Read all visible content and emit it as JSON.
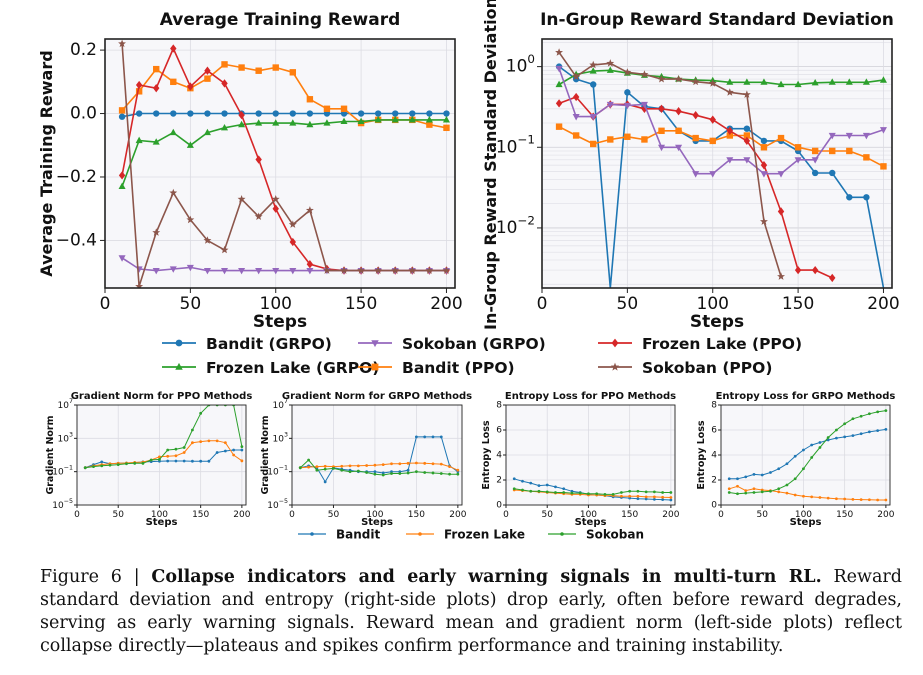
{
  "legend_top": [
    {
      "name": "Bandit (GRPO)",
      "color": "#1f77b4",
      "marker": "circle"
    },
    {
      "name": "Frozen Lake (GRPO)",
      "color": "#2ca02c",
      "marker": "triangle-up"
    },
    {
      "name": "Sokoban (GRPO)",
      "color": "#9467bd",
      "marker": "triangle-down"
    },
    {
      "name": "Bandit (PPO)",
      "color": "#ff7f0e",
      "marker": "square"
    },
    {
      "name": "Frozen Lake (PPO)",
      "color": "#d62728",
      "marker": "diamond"
    },
    {
      "name": "Sokoban (PPO)",
      "color": "#8c564b",
      "marker": "star"
    }
  ],
  "legend_bottom": [
    {
      "name": "Bandit",
      "color": "#1f77b4"
    },
    {
      "name": "Frozen Lake",
      "color": "#ff7f0e"
    },
    {
      "name": "Sokoban",
      "color": "#2ca02c"
    }
  ],
  "caption": {
    "label": "Figure 6 | ",
    "bold": "Collapse indicators and early warning signals in multi-turn RL.",
    "text": " Reward standard deviation and entropy (right-side plots) drop early, often before reward degrades, serving as early warning signals. Reward mean and gradient norm (left-side plots) reflect collapse directly—plateaus and spikes confirm performance and training instability."
  },
  "chart_data": [
    {
      "type": "line",
      "title": "Average Training Reward",
      "xlabel": "Steps",
      "ylabel": "Average Training Reward",
      "xlim": [
        0,
        205
      ],
      "ylim": [
        -0.55,
        0.235
      ],
      "xticks": [
        0,
        50,
        100,
        150,
        200
      ],
      "yticks": [
        -0.4,
        -0.2,
        0.0,
        0.2
      ],
      "yticklabels": [
        "−0.4",
        "−0.2",
        "0.0",
        "0.2"
      ],
      "grid": true,
      "x": [
        10,
        20,
        30,
        40,
        50,
        60,
        70,
        80,
        90,
        100,
        110,
        120,
        130,
        140,
        150,
        160,
        170,
        180,
        190,
        200
      ],
      "series": [
        {
          "name": "Bandit (GRPO)",
          "values": [
            -0.01,
            0.0,
            0.0,
            0.0,
            0.0,
            0.0,
            0.0,
            0.0,
            0.0,
            0.0,
            0.0,
            0.0,
            0.0,
            0.0,
            0.0,
            0.0,
            0.0,
            0.0,
            0.0,
            0.0
          ]
        },
        {
          "name": "Bandit (PPO)",
          "values": [
            0.01,
            0.07,
            0.14,
            0.1,
            0.08,
            0.11,
            0.155,
            0.145,
            0.135,
            0.145,
            0.13,
            0.045,
            0.015,
            0.015,
            -0.03,
            -0.02,
            -0.02,
            -0.02,
            -0.035,
            -0.045
          ]
        },
        {
          "name": "Frozen Lake (GRPO)",
          "values": [
            -0.23,
            -0.085,
            -0.09,
            -0.06,
            -0.1,
            -0.06,
            -0.045,
            -0.035,
            -0.03,
            -0.03,
            -0.03,
            -0.035,
            -0.03,
            -0.025,
            -0.025,
            -0.02,
            -0.02,
            -0.02,
            -0.02,
            -0.02
          ]
        },
        {
          "name": "Frozen Lake (PPO)",
          "values": [
            -0.195,
            0.09,
            0.08,
            0.205,
            0.085,
            0.135,
            0.095,
            -0.005,
            -0.145,
            -0.3,
            -0.405,
            -0.475,
            -0.49,
            -0.495,
            -0.495,
            -0.495,
            -0.495,
            -0.495,
            -0.495,
            -0.495
          ]
        },
        {
          "name": "Sokoban (GRPO)",
          "values": [
            -0.455,
            -0.49,
            -0.495,
            -0.49,
            -0.485,
            -0.495,
            -0.495,
            -0.495,
            -0.495,
            -0.495,
            -0.495,
            -0.495,
            -0.495,
            -0.495,
            -0.495,
            -0.495,
            -0.495,
            -0.495,
            -0.495,
            -0.495
          ]
        },
        {
          "name": "Sokoban (PPO)",
          "values": [
            0.22,
            -0.545,
            -0.375,
            -0.25,
            -0.335,
            -0.4,
            -0.43,
            -0.27,
            -0.325,
            -0.27,
            -0.35,
            -0.305,
            -0.495,
            -0.495,
            -0.495,
            -0.495,
            -0.495,
            -0.495,
            -0.495,
            -0.495
          ]
        }
      ]
    },
    {
      "type": "line",
      "title": "In-Group Reward Standard Deviation",
      "xlabel": "Steps",
      "ylabel": "In-Group Reward Standard Deviation",
      "xlim": [
        0,
        205
      ],
      "ylim": [
        0.0018,
        2.2
      ],
      "yscale": "log",
      "xticks": [
        0,
        50,
        100,
        150,
        200
      ],
      "yticks": [
        0.01,
        0.1,
        1
      ],
      "yticklabels": [
        "10^-2",
        "10^-1",
        "10^0"
      ],
      "grid": true,
      "x": [
        10,
        20,
        30,
        40,
        50,
        60,
        70,
        80,
        90,
        100,
        110,
        120,
        130,
        140,
        150,
        160,
        170,
        180,
        190,
        200
      ],
      "series": [
        {
          "name": "Bandit (GRPO)",
          "values": [
            1.0,
            0.7,
            0.6,
            0.0001,
            0.48,
            0.32,
            0.3,
            0.16,
            0.12,
            0.12,
            0.17,
            0.17,
            0.12,
            0.12,
            0.09,
            0.048,
            0.048,
            0.024,
            0.024,
            0.0001
          ]
        },
        {
          "name": "Bandit (PPO)",
          "values": [
            0.18,
            0.14,
            0.11,
            0.125,
            0.135,
            0.125,
            0.16,
            0.16,
            0.13,
            0.12,
            0.14,
            0.14,
            0.1,
            0.13,
            0.1,
            0.09,
            0.09,
            0.09,
            0.075,
            0.058
          ]
        },
        {
          "name": "Frozen Lake (GRPO)",
          "values": [
            0.6,
            0.8,
            0.88,
            0.9,
            0.83,
            0.78,
            0.75,
            0.7,
            0.68,
            0.67,
            0.64,
            0.64,
            0.64,
            0.6,
            0.6,
            0.63,
            0.64,
            0.64,
            0.64,
            0.68
          ]
        },
        {
          "name": "Frozen Lake (PPO)",
          "values": [
            0.35,
            0.42,
            0.24,
            0.34,
            0.34,
            0.3,
            0.3,
            0.28,
            0.25,
            0.22,
            0.16,
            0.12,
            0.06,
            0.016,
            0.003,
            0.003,
            0.0024,
            null,
            null,
            null
          ]
        },
        {
          "name": "Sokoban (GRPO)",
          "values": [
            0.95,
            0.24,
            0.24,
            0.34,
            0.33,
            0.34,
            0.1,
            0.1,
            0.047,
            0.047,
            0.07,
            0.07,
            0.047,
            0.047,
            0.07,
            0.07,
            0.14,
            0.14,
            0.14,
            0.165
          ]
        },
        {
          "name": "Sokoban (PPO)",
          "values": [
            1.5,
            0.75,
            1.05,
            1.1,
            0.85,
            0.8,
            0.7,
            0.7,
            0.65,
            0.62,
            0.48,
            0.45,
            0.012,
            0.0025,
            null,
            null,
            null,
            null,
            null,
            null
          ]
        }
      ]
    },
    {
      "type": "line",
      "title": "Gradient Norm for PPO Methods",
      "xlabel": "Steps",
      "ylabel": "Gradient Norm",
      "xlim": [
        0,
        205
      ],
      "ylim": [
        1e-05,
        10000000
      ],
      "yscale": "log",
      "xticks": [
        0,
        50,
        100,
        150,
        200
      ],
      "yticks": [
        1e-05,
        0.1,
        1000,
        10000000
      ],
      "yticklabels": [
        "10^-5",
        "10^-1",
        "10^3",
        "10^7"
      ],
      "grid": true,
      "x": [
        10,
        20,
        30,
        40,
        50,
        60,
        70,
        80,
        90,
        100,
        110,
        120,
        130,
        140,
        150,
        160,
        170,
        180,
        190,
        200
      ],
      "series": [
        {
          "name": "Bandit",
          "values": [
            0.3,
            0.7,
            1.5,
            0.9,
            1.0,
            1.1,
            1.2,
            1.5,
            1.6,
            1.8,
            1.9,
            1.9,
            1.9,
            1.8,
            1.8,
            1.8,
            20,
            30,
            40,
            40
          ]
        },
        {
          "name": "Frozen Lake",
          "values": [
            0.3,
            0.5,
            0.7,
            0.9,
            1.0,
            1.1,
            1.3,
            1.4,
            2.5,
            6,
            7,
            8,
            20,
            300,
            400,
            500,
            500,
            300,
            10,
            2
          ]
        },
        {
          "name": "Sokoban",
          "values": [
            0.3,
            0.4,
            0.5,
            0.6,
            0.7,
            0.9,
            1.0,
            1.0,
            2.5,
            3,
            40,
            50,
            80,
            10000,
            1000000,
            10000000,
            10000000,
            10000000,
            10000000,
            100
          ]
        }
      ]
    },
    {
      "type": "line",
      "title": "Gradient Norm for GRPO Methods",
      "xlabel": "Steps",
      "ylabel": "Gradient Norm",
      "xlim": [
        0,
        205
      ],
      "ylim": [
        1e-05,
        10000000
      ],
      "yscale": "log",
      "xticks": [
        0,
        50,
        100,
        150,
        200
      ],
      "yticks": [
        1e-05,
        0.1,
        1000,
        10000000
      ],
      "yticklabels": [
        "10^-5",
        "10^-1",
        "10^3",
        "10^7"
      ],
      "grid": true,
      "x": [
        10,
        20,
        30,
        40,
        50,
        60,
        70,
        80,
        90,
        100,
        110,
        120,
        130,
        140,
        150,
        160,
        170,
        180,
        190,
        200
      ],
      "series": [
        {
          "name": "Bandit",
          "values": [
            0.3,
            0.5,
            0.3,
            0.006,
            0.3,
            0.2,
            0.15,
            0.1,
            0.1,
            0.1,
            0.07,
            0.1,
            0.1,
            0.15,
            1500,
            1500,
            1500,
            1500,
            0.5,
            0.1
          ]
        },
        {
          "name": "Frozen Lake",
          "values": [
            0.3,
            0.35,
            0.4,
            0.45,
            0.4,
            0.45,
            0.5,
            0.5,
            0.55,
            0.6,
            0.7,
            0.9,
            0.9,
            1.0,
            1.1,
            1.0,
            0.9,
            0.8,
            0.4,
            0.15
          ]
        },
        {
          "name": "Sokoban",
          "values": [
            0.3,
            2.5,
            0.15,
            0.2,
            0.25,
            0.15,
            0.1,
            0.12,
            0.08,
            0.05,
            0.04,
            0.06,
            0.06,
            0.07,
            0.1,
            0.08,
            0.07,
            0.06,
            0.05,
            0.05
          ]
        }
      ]
    },
    {
      "type": "line",
      "title": "Entropy Loss for PPO Methods",
      "xlabel": "Steps",
      "ylabel": "Entropy Loss",
      "xlim": [
        0,
        205
      ],
      "ylim": [
        0,
        8
      ],
      "xticks": [
        0,
        50,
        100,
        150,
        200
      ],
      "yticks": [
        0,
        2,
        4,
        6,
        8
      ],
      "yticklabels": [
        "0",
        "2",
        "4",
        "6",
        "8"
      ],
      "grid": true,
      "x": [
        10,
        20,
        30,
        40,
        50,
        60,
        70,
        80,
        90,
        100,
        110,
        120,
        130,
        140,
        150,
        160,
        170,
        180,
        190,
        200
      ],
      "series": [
        {
          "name": "Bandit",
          "values": [
            2.1,
            1.9,
            1.75,
            1.55,
            1.6,
            1.45,
            1.3,
            1.1,
            1.0,
            0.85,
            0.8,
            0.75,
            0.65,
            0.6,
            0.55,
            0.5,
            0.48,
            0.45,
            0.43,
            0.4
          ]
        },
        {
          "name": "Frozen Lake",
          "values": [
            1.2,
            1.15,
            1.1,
            1.05,
            1.0,
            0.95,
            0.9,
            0.85,
            0.85,
            0.8,
            0.8,
            0.75,
            0.75,
            0.7,
            0.7,
            0.7,
            0.65,
            0.65,
            0.62,
            0.6
          ]
        },
        {
          "name": "Sokoban",
          "values": [
            1.3,
            1.2,
            1.1,
            1.1,
            1.05,
            1.0,
            1.0,
            0.95,
            0.95,
            0.9,
            0.9,
            0.85,
            0.85,
            1.0,
            1.1,
            1.1,
            1.05,
            1.05,
            1.0,
            1.0
          ]
        }
      ]
    },
    {
      "type": "line",
      "title": "Entropy Loss for GRPO Methods",
      "xlabel": "Steps",
      "ylabel": "Entropy Loss",
      "xlim": [
        0,
        205
      ],
      "ylim": [
        0,
        8
      ],
      "xticks": [
        0,
        50,
        100,
        150,
        200
      ],
      "yticks": [
        0,
        2,
        4,
        6,
        8
      ],
      "yticklabels": [
        "0",
        "2",
        "4",
        "6",
        "8"
      ],
      "grid": true,
      "x": [
        10,
        20,
        30,
        40,
        50,
        60,
        70,
        80,
        90,
        100,
        110,
        120,
        130,
        140,
        150,
        160,
        170,
        180,
        190,
        200
      ],
      "series": [
        {
          "name": "Bandit",
          "values": [
            2.1,
            2.1,
            2.25,
            2.45,
            2.4,
            2.6,
            2.9,
            3.3,
            3.9,
            4.4,
            4.8,
            5.0,
            5.2,
            5.35,
            5.45,
            5.55,
            5.7,
            5.85,
            5.95,
            6.05
          ]
        },
        {
          "name": "Frozen Lake",
          "values": [
            1.3,
            1.5,
            1.15,
            1.3,
            1.2,
            1.15,
            1.05,
            0.95,
            0.8,
            0.7,
            0.65,
            0.6,
            0.55,
            0.5,
            0.48,
            0.45,
            0.43,
            0.42,
            0.4,
            0.4
          ]
        },
        {
          "name": "Sokoban",
          "values": [
            1.0,
            0.9,
            0.95,
            1.0,
            1.05,
            1.1,
            1.3,
            1.6,
            2.1,
            2.9,
            3.8,
            4.6,
            5.4,
            6.0,
            6.5,
            6.9,
            7.1,
            7.3,
            7.45,
            7.55
          ]
        }
      ]
    }
  ]
}
